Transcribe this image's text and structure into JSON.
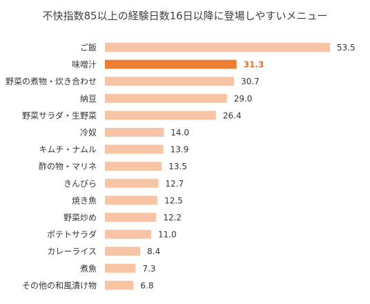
{
  "chart_data": {
    "type": "bar",
    "orientation": "horizontal",
    "title": "不快指数85以上の経験日数16日以降に登場しやすいメニュー",
    "categories": [
      "ご飯",
      "味噌汁",
      "野菜の煮物・炊き合わせ",
      "納豆",
      "野菜サラダ・生野菜",
      "冷奴",
      "キムチ・ナムル",
      "酢の物・マリネ",
      "きんぴら",
      "焼き魚",
      "野菜炒め",
      "ポテトサラダ",
      "カレーライス",
      "煮魚",
      "その他の和風漬け物"
    ],
    "values": [
      53.5,
      31.3,
      30.7,
      29.0,
      26.4,
      14.0,
      13.9,
      13.5,
      12.7,
      12.5,
      12.2,
      11.0,
      8.4,
      7.3,
      6.8
    ],
    "value_labels": [
      "53.5",
      "31.3",
      "30.7",
      "29.0",
      "26.4",
      "14.0",
      "13.9",
      "13.5",
      "12.7",
      "12.5",
      "12.2",
      "11.0",
      "8.4",
      "7.3",
      "6.8"
    ],
    "highlight_index": 1,
    "xlabel": "",
    "ylabel": "",
    "xlim": [
      0,
      53.5
    ],
    "grid": false,
    "colors": {
      "bar": "#f7c4a6",
      "highlight": "#ed7d31",
      "text": "#333333",
      "highlight_text": "#e96f2c"
    }
  }
}
